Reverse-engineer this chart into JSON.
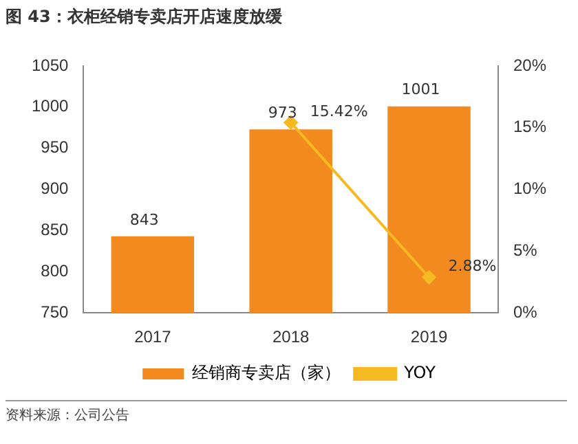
{
  "chart_data": {
    "type": "bar",
    "title": "图 43：衣柜经销专卖店开店速度放缓",
    "categories": [
      "2017",
      "2018",
      "2019"
    ],
    "series": [
      {
        "name": "经销商专卖店（家）",
        "color": "#f28a1f",
        "values": [
          843,
          973,
          1001
        ],
        "value_labels": [
          "843",
          "973",
          "1001"
        ]
      },
      {
        "name": "YOY",
        "type": "line",
        "axis": "y2",
        "color": "#f5b921",
        "values": [
          null,
          15.42,
          2.88
        ],
        "value_labels": [
          null,
          "15.42%",
          "2.88%"
        ]
      }
    ],
    "ylim": [
      750,
      1050
    ],
    "yticks": [
      750,
      800,
      850,
      900,
      950,
      1000,
      1050
    ],
    "y2lim": [
      0,
      20
    ],
    "y2ticks": [
      {
        "value": 0,
        "label": "0%"
      },
      {
        "value": 5,
        "label": "5%"
      },
      {
        "value": 10,
        "label": "10%"
      },
      {
        "value": 15,
        "label": "15%"
      },
      {
        "value": 20,
        "label": "20%"
      }
    ],
    "grid": false,
    "legend": "bottom",
    "marker": "diamond",
    "line_style": "solid",
    "annotations": [
      "资料来源：公司公告"
    ]
  }
}
